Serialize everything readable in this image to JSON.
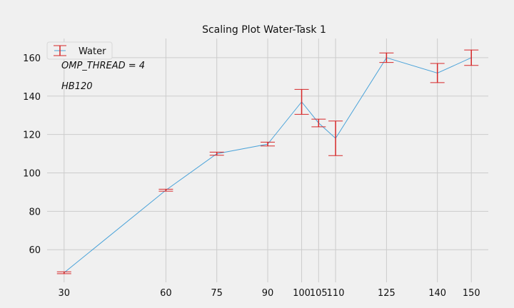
{
  "chart_data": {
    "type": "line",
    "title": "Scaling Plot Water-Task 1",
    "xlabel": "",
    "ylabel": "",
    "grid": true,
    "legend_position": "top-left",
    "xlim": [
      25,
      155
    ],
    "ylim": [
      43,
      170
    ],
    "xticks": [
      30,
      60,
      75,
      90,
      100,
      105,
      110,
      125,
      140,
      150
    ],
    "yticks": [
      60,
      80,
      100,
      120,
      140,
      160
    ],
    "series": [
      {
        "name": "Water",
        "x": [
          30,
          60,
          75,
          90,
          100,
          105,
          110,
          125,
          140,
          150
        ],
        "y": [
          48,
          91,
          110,
          115,
          137,
          126,
          118,
          160,
          152,
          160
        ],
        "err": [
          0.5,
          0.5,
          0.8,
          1,
          6.5,
          2,
          9,
          2.5,
          5,
          4
        ],
        "line_color": "#4ba3d9",
        "err_color": "#d62728"
      }
    ],
    "annotations": [
      "OMP_THREAD = 4",
      "HB120"
    ]
  },
  "colors": {
    "background": "#f0f0f0",
    "grid": "#cccccc"
  }
}
